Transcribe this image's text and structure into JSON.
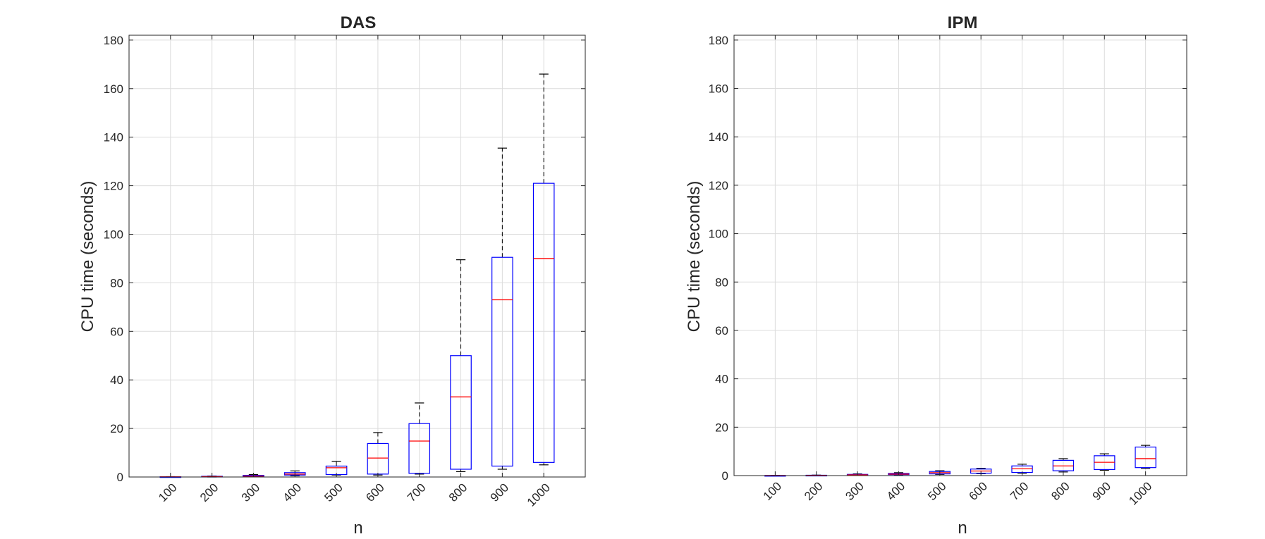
{
  "colors": {
    "box": "#0000ff",
    "median": "#ff0000",
    "whisker": "#000000",
    "grid": "#dcdcdc",
    "axis": "#262626"
  },
  "chart_data": [
    {
      "type": "box",
      "title": "DAS",
      "xlabel": "n",
      "ylabel": "CPU time (seconds)",
      "categories": [
        "100",
        "200",
        "300",
        "400",
        "500",
        "600",
        "700",
        "800",
        "900",
        "1000"
      ],
      "ylim": [
        0,
        182
      ],
      "yticks": [
        "0",
        "20",
        "40",
        "60",
        "80",
        "100",
        "120",
        "140",
        "160",
        "180"
      ],
      "grid": true,
      "boxes": [
        {
          "min": 0.0,
          "q1": 0.0,
          "median": 0.05,
          "q3": 0.1,
          "max": 0.15
        },
        {
          "min": 0.0,
          "q1": 0.05,
          "median": 0.15,
          "q3": 0.3,
          "max": 0.4
        },
        {
          "min": 0.1,
          "q1": 0.2,
          "median": 0.4,
          "q3": 0.7,
          "max": 1.0
        },
        {
          "min": 0.5,
          "q1": 0.8,
          "median": 1.2,
          "q3": 1.8,
          "max": 2.5
        },
        {
          "min": 0.8,
          "q1": 1.0,
          "median": 3.8,
          "q3": 4.5,
          "max": 6.5
        },
        {
          "min": 0.8,
          "q1": 1.2,
          "median": 7.8,
          "q3": 13.8,
          "max": 18.3
        },
        {
          "min": 1.2,
          "q1": 1.5,
          "median": 14.8,
          "q3": 22.0,
          "max": 30.5
        },
        {
          "min": 2.2,
          "q1": 3.2,
          "median": 33.0,
          "q3": 50.0,
          "max": 89.5
        },
        {
          "min": 3.2,
          "q1": 4.5,
          "median": 73.0,
          "q3": 90.5,
          "max": 135.5
        },
        {
          "min": 5.0,
          "q1": 6.0,
          "median": 90.0,
          "q3": 121.0,
          "max": 166.0
        }
      ]
    },
    {
      "type": "box",
      "title": "IPM",
      "xlabel": "n",
      "ylabel": "CPU time (seconds)",
      "categories": [
        "100",
        "200",
        "300",
        "400",
        "500",
        "600",
        "700",
        "800",
        "900",
        "1000"
      ],
      "ylim": [
        0,
        182
      ],
      "yticks": [
        "0",
        "20",
        "40",
        "60",
        "80",
        "100",
        "120",
        "140",
        "160",
        "180"
      ],
      "grid": true,
      "boxes": [
        {
          "min": 0.0,
          "q1": 0.0,
          "median": 0.02,
          "q3": 0.05,
          "max": 0.08
        },
        {
          "min": 0.0,
          "q1": 0.05,
          "median": 0.1,
          "q3": 0.15,
          "max": 0.2
        },
        {
          "min": 0.1,
          "q1": 0.2,
          "median": 0.3,
          "q3": 0.5,
          "max": 0.7
        },
        {
          "min": 0.3,
          "q1": 0.4,
          "median": 0.6,
          "q3": 0.9,
          "max": 1.2
        },
        {
          "min": 0.5,
          "q1": 0.7,
          "median": 1.2,
          "q3": 1.7,
          "max": 2.0
        },
        {
          "min": 0.8,
          "q1": 1.0,
          "median": 1.9,
          "q3": 2.7,
          "max": 3.0
        },
        {
          "min": 1.0,
          "q1": 1.3,
          "median": 2.8,
          "q3": 4.0,
          "max": 4.7
        },
        {
          "min": 1.5,
          "q1": 2.0,
          "median": 4.0,
          "q3": 6.3,
          "max": 7.0
        },
        {
          "min": 2.2,
          "q1": 2.5,
          "median": 5.5,
          "q3": 8.2,
          "max": 9.0
        },
        {
          "min": 3.0,
          "q1": 3.3,
          "median": 7.0,
          "q3": 11.8,
          "max": 12.5
        }
      ]
    }
  ]
}
